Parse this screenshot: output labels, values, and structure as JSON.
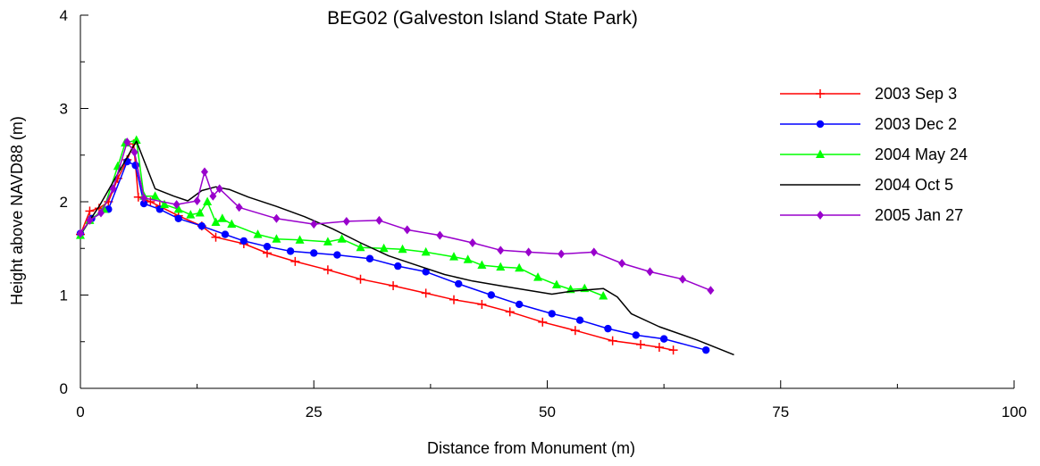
{
  "chart_data": {
    "type": "line",
    "title": "BEG02 (Galveston Island State Park)",
    "xlabel": "Distance from Monument (m)",
    "ylabel": "Height above NAVD88 (m)",
    "xlim": [
      0,
      100
    ],
    "ylim": [
      0,
      4
    ],
    "xticks": [
      "0",
      "25",
      "50",
      "75",
      "100"
    ],
    "yticks": [
      "0",
      "1",
      "2",
      "3",
      "4"
    ],
    "grid": false,
    "legend_position": "right",
    "series": [
      {
        "name": "2003 Sep 3",
        "color": "#ff0000",
        "marker": "plus",
        "points": [
          [
            0,
            1.65
          ],
          [
            1,
            1.9
          ],
          [
            2,
            1.93
          ],
          [
            3,
            2.0
          ],
          [
            4,
            2.25
          ],
          [
            5,
            2.45
          ],
          [
            5.7,
            2.62
          ],
          [
            6.2,
            2.05
          ],
          [
            7.5,
            2.0
          ],
          [
            8.5,
            1.95
          ],
          [
            10.5,
            1.85
          ],
          [
            13,
            1.74
          ],
          [
            14.5,
            1.62
          ],
          [
            17.5,
            1.55
          ],
          [
            20,
            1.45
          ],
          [
            23,
            1.36
          ],
          [
            26.5,
            1.27
          ],
          [
            30,
            1.17
          ],
          [
            33.5,
            1.1
          ],
          [
            37,
            1.02
          ],
          [
            40,
            0.95
          ],
          [
            43,
            0.9
          ],
          [
            46,
            0.82
          ],
          [
            49.5,
            0.71
          ],
          [
            53,
            0.62
          ],
          [
            57,
            0.51
          ],
          [
            60,
            0.47
          ],
          [
            62,
            0.44
          ],
          [
            63.5,
            0.41
          ]
        ]
      },
      {
        "name": "2003 Dec 2",
        "color": "#0000ff",
        "marker": "circle",
        "points": [
          [
            0,
            1.66
          ],
          [
            1.2,
            1.82
          ],
          [
            3,
            1.92
          ],
          [
            5,
            2.43
          ],
          [
            5.9,
            2.39
          ],
          [
            6.8,
            1.98
          ],
          [
            8.5,
            1.92
          ],
          [
            10.5,
            1.82
          ],
          [
            13,
            1.74
          ],
          [
            15.5,
            1.65
          ],
          [
            17.5,
            1.58
          ],
          [
            20,
            1.52
          ],
          [
            22.5,
            1.47
          ],
          [
            25,
            1.45
          ],
          [
            27.5,
            1.43
          ],
          [
            31,
            1.39
          ],
          [
            34,
            1.31
          ],
          [
            37,
            1.25
          ],
          [
            40.5,
            1.12
          ],
          [
            44,
            1.0
          ],
          [
            47,
            0.9
          ],
          [
            50.5,
            0.8
          ],
          [
            53.5,
            0.73
          ],
          [
            56.5,
            0.64
          ],
          [
            59.5,
            0.57
          ],
          [
            62.5,
            0.53
          ],
          [
            67,
            0.41
          ]
        ]
      },
      {
        "name": "2004 May 24",
        "color": "#00ff00",
        "marker": "triangle",
        "points": [
          [
            0,
            1.64
          ],
          [
            1,
            1.8
          ],
          [
            2.5,
            1.92
          ],
          [
            4,
            2.38
          ],
          [
            4.8,
            2.63
          ],
          [
            6,
            2.66
          ],
          [
            6.8,
            2.06
          ],
          [
            8,
            2.06
          ],
          [
            9,
            1.97
          ],
          [
            10.5,
            1.92
          ],
          [
            11.8,
            1.86
          ],
          [
            12.8,
            1.88
          ],
          [
            13.6,
            2.0
          ],
          [
            14.5,
            1.78
          ],
          [
            15.2,
            1.82
          ],
          [
            16.2,
            1.76
          ],
          [
            19,
            1.65
          ],
          [
            21,
            1.6
          ],
          [
            23.5,
            1.59
          ],
          [
            26.5,
            1.57
          ],
          [
            28,
            1.6
          ],
          [
            30,
            1.51
          ],
          [
            32.5,
            1.5
          ],
          [
            34.5,
            1.49
          ],
          [
            37,
            1.46
          ],
          [
            40,
            1.41
          ],
          [
            41.5,
            1.38
          ],
          [
            43,
            1.32
          ],
          [
            45,
            1.3
          ],
          [
            47,
            1.29
          ],
          [
            49,
            1.19
          ],
          [
            51,
            1.11
          ],
          [
            52.5,
            1.06
          ],
          [
            54,
            1.07
          ],
          [
            56,
            0.99
          ]
        ]
      },
      {
        "name": "2004 Oct 5",
        "color": "#000000",
        "marker": "none",
        "points": [
          [
            0,
            1.65
          ],
          [
            2,
            1.95
          ],
          [
            4,
            2.3
          ],
          [
            6,
            2.65
          ],
          [
            8,
            2.14
          ],
          [
            10,
            2.06
          ],
          [
            11.5,
            2.01
          ],
          [
            13,
            2.12
          ],
          [
            14.5,
            2.16
          ],
          [
            16,
            2.13
          ],
          [
            18,
            2.05
          ],
          [
            21,
            1.95
          ],
          [
            24,
            1.84
          ],
          [
            27,
            1.71
          ],
          [
            30,
            1.56
          ],
          [
            33,
            1.42
          ],
          [
            36,
            1.32
          ],
          [
            39,
            1.22
          ],
          [
            42,
            1.15
          ],
          [
            45,
            1.1
          ],
          [
            48,
            1.05
          ],
          [
            50.5,
            1.01
          ],
          [
            52.5,
            1.04
          ],
          [
            56,
            1.07
          ],
          [
            57.5,
            0.98
          ],
          [
            59,
            0.8
          ],
          [
            62,
            0.66
          ],
          [
            66,
            0.52
          ],
          [
            70,
            0.36
          ]
        ]
      },
      {
        "name": "2005 Jan 27",
        "color": "#9900cc",
        "marker": "diamond",
        "points": [
          [
            0,
            1.66
          ],
          [
            1,
            1.8
          ],
          [
            2.2,
            1.88
          ],
          [
            3.5,
            2.14
          ],
          [
            5,
            2.64
          ],
          [
            5.8,
            2.53
          ],
          [
            6.8,
            2.04
          ],
          [
            10.3,
            1.97
          ],
          [
            12.5,
            2.01
          ],
          [
            13.3,
            2.32
          ],
          [
            14.2,
            2.06
          ],
          [
            14.9,
            2.14
          ],
          [
            17,
            1.94
          ],
          [
            21,
            1.82
          ],
          [
            25,
            1.76
          ],
          [
            28.5,
            1.79
          ],
          [
            32,
            1.8
          ],
          [
            35,
            1.7
          ],
          [
            38.5,
            1.64
          ],
          [
            42,
            1.56
          ],
          [
            45,
            1.48
          ],
          [
            48,
            1.46
          ],
          [
            51.5,
            1.44
          ],
          [
            55,
            1.46
          ],
          [
            58,
            1.34
          ],
          [
            61,
            1.25
          ],
          [
            64.5,
            1.17
          ],
          [
            67.5,
            1.05
          ]
        ]
      }
    ]
  }
}
